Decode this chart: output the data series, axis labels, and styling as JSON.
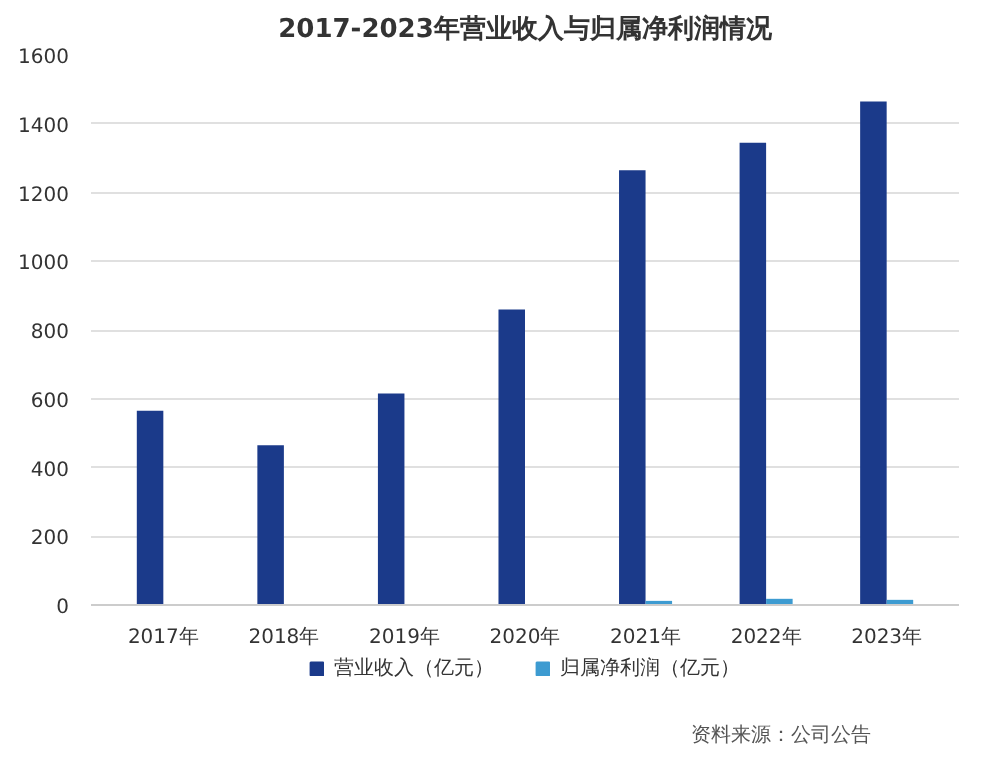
{
  "chart_data": {
    "type": "bar",
    "title": "2017-2023年营业收入与归属净利润情况",
    "categories": [
      "2017年",
      "2018年",
      "2019年",
      "2020年",
      "2021年",
      "2022年",
      "2023年"
    ],
    "series": [
      {
        "name": "营业收入（亿元）",
        "color": "#1b3a8a",
        "values": [
          565,
          465,
          615,
          860,
          1265,
          1345,
          1465
        ]
      },
      {
        "name": "归属净利润（亿元）",
        "color": "#3d9bd1",
        "values": [
          null,
          null,
          null,
          null,
          12,
          18,
          15
        ]
      }
    ],
    "ylim": [
      0,
      1600
    ],
    "yticks": [
      0,
      200,
      400,
      600,
      800,
      1000,
      1200,
      1400,
      1600
    ],
    "grid": "y",
    "legend": "bottom",
    "annotations": [
      "资料来源：公司公告"
    ]
  }
}
